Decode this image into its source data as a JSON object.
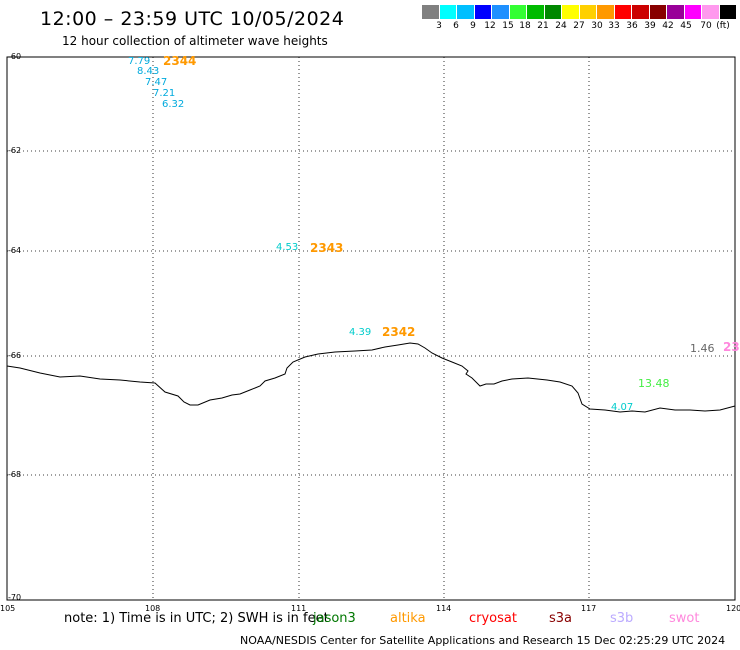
{
  "header": {
    "title": "12:00 – 23:59 UTC 10/05/2024",
    "subtitle": "12 hour collection of altimeter wave heights"
  },
  "legend": {
    "colors": [
      "#808080",
      "#00ffff",
      "#00bfff",
      "#0000ff",
      "#1e90ff",
      "#33ff33",
      "#00bb00",
      "#008800",
      "#ffff00",
      "#ffd000",
      "#ff9900",
      "#ff0000",
      "#cc0000",
      "#880000",
      "#990099",
      "#ff00ff",
      "#ff99ee",
      "#000000"
    ],
    "labels": [
      "3",
      "6",
      "9",
      "12",
      "15",
      "18",
      "21",
      "24",
      "27",
      "30",
      "33",
      "36",
      "39",
      "42",
      "45",
      "70"
    ],
    "unit": "(ft)"
  },
  "axes": {
    "y_labels": [
      "-60",
      "-62",
      "-64",
      "-66",
      "-68",
      "-70"
    ],
    "x_labels": [
      "105",
      "108",
      "111",
      "114",
      "117",
      "120"
    ]
  },
  "observations": [
    {
      "text": "7.79",
      "color": "#00aadd"
    },
    {
      "text": "8.43",
      "color": "#00aadd"
    },
    {
      "text": "7.47",
      "color": "#00aadd"
    },
    {
      "text": "7.21",
      "color": "#00aadd"
    },
    {
      "text": "6.32",
      "color": "#00aadd"
    },
    {
      "text": "4.53",
      "color": "#00cccc"
    },
    {
      "text": "4.39",
      "color": "#00cccc"
    },
    {
      "text": "1.46",
      "color": "#666666"
    },
    {
      "text": "13.48",
      "color": "#44ee44"
    },
    {
      "text": "4.07",
      "color": "#00cccc"
    }
  ],
  "passes": [
    {
      "text": "2344",
      "color": "#ff9900"
    },
    {
      "text": "2343",
      "color": "#ff9900"
    },
    {
      "text": "2342",
      "color": "#ff9900"
    },
    {
      "text": "23",
      "color": "#ff88dd"
    }
  ],
  "note": "note:  1) Time is in UTC; 2) SWH is in feet",
  "satellites": [
    {
      "name": "jason3",
      "color": "#007700"
    },
    {
      "name": "altika",
      "color": "#ff9900"
    },
    {
      "name": "cryosat",
      "color": "#ff0000"
    },
    {
      "name": "s3a",
      "color": "#880000"
    },
    {
      "name": "s3b",
      "color": "#bbaaff"
    },
    {
      "name": "swot",
      "color": "#ff88dd"
    }
  ],
  "footer": "NOAA/NESDIS Center for Satellite Applications and Research   15 Dec 02:25:29 UTC 2024"
}
